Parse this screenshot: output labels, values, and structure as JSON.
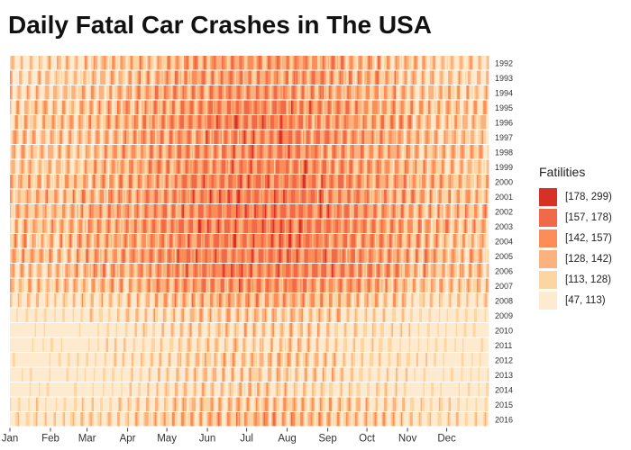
{
  "chart_data": {
    "type": "heatmap",
    "title": "Daily Fatal Car Crashes in The USA",
    "xlabel": "",
    "ylabel": "",
    "x_tick_labels": [
      "Jan",
      "Feb",
      "Mar",
      "Apr",
      "May",
      "Jun",
      "Jul",
      "Aug",
      "Sep",
      "Oct",
      "Nov",
      "Dec"
    ],
    "x_tick_days": [
      1,
      32,
      60,
      91,
      121,
      152,
      182,
      213,
      244,
      274,
      305,
      335
    ],
    "x_range_days": [
      1,
      366
    ],
    "rows": [
      "1992",
      "1993",
      "1994",
      "1995",
      "1996",
      "1997",
      "1998",
      "1999",
      "2000",
      "2001",
      "2002",
      "2003",
      "2004",
      "2005",
      "2006",
      "2007",
      "2008",
      "2009",
      "2010",
      "2011",
      "2012",
      "2013",
      "2014",
      "2015",
      "2016"
    ],
    "year_level_estimates": {
      "1992": 125,
      "1993": 127,
      "1994": 129,
      "1995": 133,
      "1996": 134,
      "1997": 134,
      "1998": 134,
      "1999": 134,
      "2000": 137,
      "2001": 137,
      "2002": 139,
      "2003": 139,
      "2004": 138,
      "2005": 139,
      "2006": 137,
      "2007": 131,
      "2008": 118,
      "2009": 106,
      "2010": 100,
      "2011": 100,
      "2012": 104,
      "2013": 101,
      "2014": 100,
      "2015": 108,
      "2016": 114
    },
    "legend": {
      "title": "Fatilities",
      "position": "right",
      "bins": [
        {
          "label": "[178, 299)",
          "min": 178,
          "max": 299,
          "color": "#d73027"
        },
        {
          "label": "[157, 178)",
          "min": 157,
          "max": 178,
          "color": "#f06a4a"
        },
        {
          "label": "[142, 157)",
          "min": 142,
          "max": 157,
          "color": "#fc8d59"
        },
        {
          "label": "[128, 142)",
          "min": 128,
          "max": 142,
          "color": "#fcb27f"
        },
        {
          "label": "[113, 128)",
          "min": 113,
          "max": 128,
          "color": "#fdd5a2"
        },
        {
          "label": "[47, 113)",
          "min": 47,
          "max": 113,
          "color": "#feebcf"
        }
      ]
    },
    "grid": false
  }
}
